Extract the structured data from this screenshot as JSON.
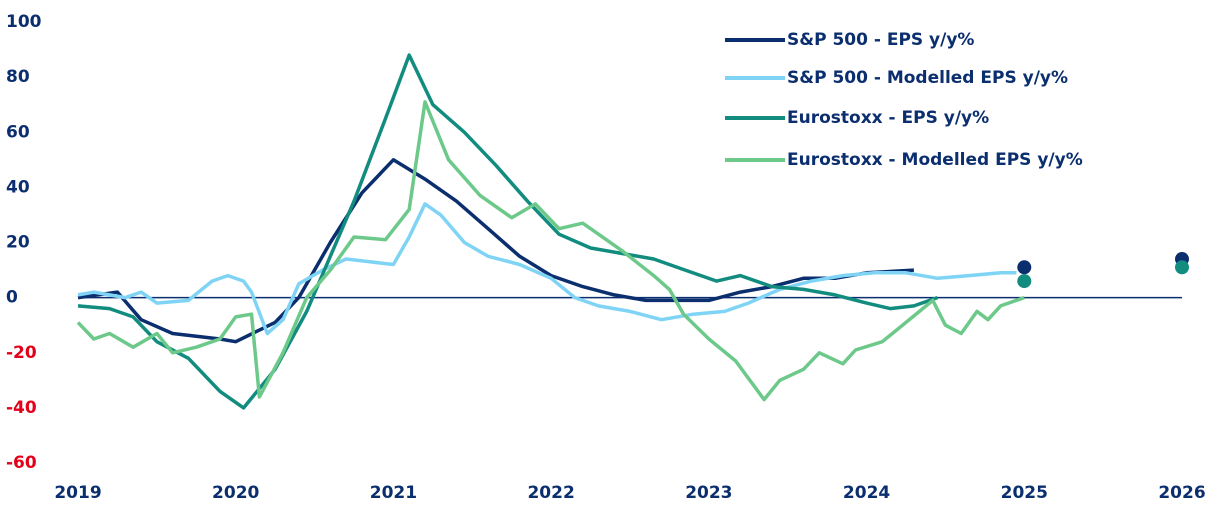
{
  "chart_data": {
    "type": "line",
    "xlim": [
      2019,
      2026
    ],
    "xticks": [
      2019,
      2020,
      2021,
      2022,
      2023,
      2024,
      2025,
      2026
    ],
    "ylim": [
      -60,
      100
    ],
    "yticks": [
      -60,
      -40,
      -20,
      0,
      20,
      40,
      60,
      80,
      100
    ],
    "tick_color": "#0b2e6e",
    "negative_tick_color": "#e3001b",
    "zero_line_color": "#0b2e6e",
    "legend": "upper right",
    "series": [
      {
        "name": "S&P 500 - EPS y/y%",
        "color": "#0b2e6e",
        "x": [
          2019,
          2019.25,
          2019.4,
          2019.6,
          2019.9,
          2020.0,
          2020.25,
          2020.4,
          2020.6,
          2020.8,
          2021.0,
          2021.2,
          2021.4,
          2021.6,
          2021.8,
          2022.0,
          2022.2,
          2022.4,
          2022.6,
          2022.8,
          2023.0,
          2023.2,
          2023.4,
          2023.6,
          2023.8,
          2024.0,
          2024.3
        ],
        "values": [
          0,
          2,
          -8,
          -13,
          -15,
          -16,
          -9,
          0,
          20,
          38,
          50,
          43,
          35,
          25,
          15,
          8,
          4,
          1,
          -1,
          -1,
          -1,
          2,
          4,
          7,
          7,
          9,
          10
        ],
        "forecast_x": [
          2025,
          2026
        ],
        "forecast_values": [
          11,
          14
        ]
      },
      {
        "name": "S&P 500 - Modelled EPS y/y%",
        "color": "#7fd4f5",
        "x": [
          2019,
          2019.1,
          2019.3,
          2019.4,
          2019.5,
          2019.7,
          2019.85,
          2019.95,
          2020.05,
          2020.1,
          2020.2,
          2020.3,
          2020.4,
          2020.55,
          2020.7,
          2020.85,
          2021.0,
          2021.1,
          2021.2,
          2021.3,
          2021.45,
          2021.6,
          2021.8,
          2022.0,
          2022.15,
          2022.3,
          2022.5,
          2022.7,
          2022.9,
          2023.1,
          2023.25,
          2023.45,
          2023.65,
          2023.85,
          2024.05,
          2024.25,
          2024.45,
          2024.65,
          2024.85,
          2024.95
        ],
        "values": [
          1,
          2,
          0,
          2,
          -2,
          -1,
          6,
          8,
          6,
          2,
          -13,
          -8,
          5,
          10,
          14,
          13,
          12,
          22,
          34,
          30,
          20,
          15,
          12,
          7,
          0,
          -3,
          -5,
          -8,
          -6,
          -5,
          -2,
          3,
          6,
          8,
          9,
          9,
          7,
          8,
          9,
          9
        ]
      },
      {
        "name": "Eurostoxx - EPS y/y%",
        "color": "#128c7e",
        "x": [
          2019,
          2019.2,
          2019.35,
          2019.5,
          2019.7,
          2019.9,
          2020.05,
          2020.25,
          2020.45,
          2020.6,
          2020.75,
          2020.95,
          2021.1,
          2021.25,
          2021.45,
          2021.65,
          2021.85,
          2022.05,
          2022.25,
          2022.45,
          2022.65,
          2022.85,
          2023.05,
          2023.2,
          2023.4,
          2023.6,
          2023.8,
          2024.0,
          2024.15,
          2024.3,
          2024.45
        ],
        "values": [
          -3,
          -4,
          -7,
          -16,
          -22,
          -34,
          -40,
          -26,
          -5,
          15,
          35,
          65,
          88,
          70,
          60,
          48,
          35,
          23,
          18,
          16,
          14,
          10,
          6,
          8,
          4,
          3,
          1,
          -2,
          -4,
          -3,
          0
        ],
        "forecast_x": [
          2025,
          2026
        ],
        "forecast_values": [
          6,
          11
        ]
      },
      {
        "name": "Eurostoxx - Modelled EPS y/y%",
        "color": "#6cc98a",
        "x": [
          2019,
          2019.1,
          2019.2,
          2019.35,
          2019.5,
          2019.6,
          2019.75,
          2019.9,
          2020.0,
          2020.1,
          2020.15,
          2020.3,
          2020.45,
          2020.6,
          2020.75,
          2020.95,
          2021.1,
          2021.2,
          2021.35,
          2021.55,
          2021.75,
          2021.9,
          2022.05,
          2022.2,
          2022.3,
          2022.45,
          2022.65,
          2022.75,
          2022.84,
          2023.0,
          2023.17,
          2023.35,
          2023.45,
          2023.6,
          2023.7,
          2023.85,
          2023.93,
          2024.1,
          2024.25,
          2024.42,
          2024.5,
          2024.6,
          2024.7,
          2024.77,
          2024.85,
          2025.0
        ],
        "values": [
          -9,
          -15,
          -13,
          -18,
          -13,
          -20,
          -18,
          -15,
          -7,
          -6,
          -36,
          -20,
          0,
          10,
          22,
          21,
          32,
          71,
          50,
          37,
          29,
          34,
          25,
          27,
          23,
          17,
          8,
          3,
          -6,
          -15,
          -23,
          -37,
          -30,
          -26,
          -20,
          -24,
          -19,
          -16,
          -9,
          -1,
          -10,
          -13,
          -5,
          -8,
          -3,
          0
        ]
      }
    ]
  }
}
